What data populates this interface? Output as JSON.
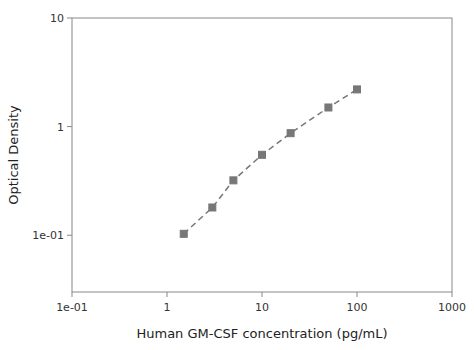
{
  "chart_data": {
    "type": "line",
    "xlabel": "Human GM-CSF concentration (pg/mL)",
    "ylabel": "Optical Density",
    "log": true,
    "x": [
      1.5,
      3.0,
      5.0,
      10.0,
      20.0,
      50.0,
      100.0
    ],
    "values": [
      0.103,
      0.18,
      0.32,
      0.55,
      0.87,
      1.5,
      2.2
    ],
    "color": "#777777",
    "marker": "square",
    "line_style": "dashed",
    "xlim": [
      0.1,
      1000
    ],
    "ylim": [
      0.03,
      10
    ],
    "xticks": [
      {
        "value": 0.1,
        "label": "1e-01"
      },
      1,
      10,
      100,
      1000
    ],
    "yticks": [
      {
        "value": 0.1,
        "label": "1e-01"
      },
      1,
      10
    ],
    "grid": false
  }
}
